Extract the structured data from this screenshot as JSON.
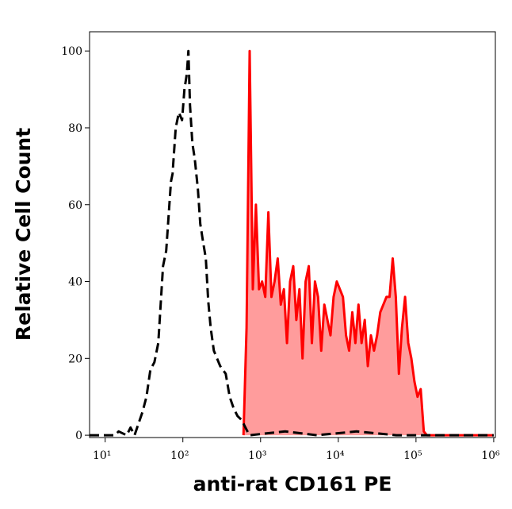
{
  "chart_data": {
    "type": "histogram-overlay",
    "xlabel": "anti-rat CD161 PE",
    "ylabel": "Relative Cell Count",
    "xscale": "log",
    "xlim": [
      6.3,
      1050000
    ],
    "ylim": [
      -0.6,
      105
    ],
    "xticks": [
      {
        "value": 10,
        "label": "10¹"
      },
      {
        "value": 100,
        "label": "10²"
      },
      {
        "value": 1000,
        "label": "10³"
      },
      {
        "value": 10000,
        "label": "10⁴"
      },
      {
        "value": 100000,
        "label": "10⁵"
      },
      {
        "value": 1000000,
        "label": "10⁶"
      }
    ],
    "yticks": [
      0,
      20,
      40,
      60,
      80,
      100
    ],
    "series": [
      {
        "color": "#000000",
        "style": "dashed",
        "filled": false,
        "x": [
          6.3,
          13.3,
          14.9,
          18.9,
          21.2,
          23.9,
          26.8,
          30.2,
          34.0,
          38.2,
          43.0,
          48.3,
          51.8,
          55.6,
          61.1,
          67.1,
          70.3,
          73.7,
          80.9,
          88.9,
          97.7,
          104.8,
          112.4,
          117.8,
          123.5,
          132.5,
          142.2,
          156.3,
          167.6,
          179.9,
          197.6,
          212.1,
          227.8,
          250.2,
          274.8,
          301.8,
          355.8,
          400,
          449.8,
          505.8,
          568.6,
          639.4,
          719,
          2070,
          5300,
          17200,
          55600,
          1000000
        ],
        "values": [
          0,
          0,
          1,
          0,
          2,
          0,
          3,
          6,
          10,
          17,
          19,
          24,
          34,
          44,
          48,
          60,
          66,
          68,
          80,
          84,
          82,
          90,
          94,
          100,
          86,
          76,
          72,
          64,
          55,
          51,
          46,
          35,
          28,
          22,
          20,
          18,
          16,
          10,
          7,
          5,
          4,
          2,
          0,
          1,
          0,
          1,
          0,
          0
        ]
      },
      {
        "color": "#ff0000",
        "fill": "#ff9c9c",
        "style": "solid",
        "filled": true,
        "x": [
          603,
          661,
          724,
          794,
          871,
          955,
          1047,
          1148,
          1259,
          1380,
          1514,
          1660,
          1820,
          1995,
          2188,
          2399,
          2630,
          2884,
          3162,
          3467,
          3802,
          4169,
          4571,
          5012,
          5495,
          6026,
          6607,
          7244,
          7943,
          8710,
          9550,
          10470,
          11480,
          12590,
          13800,
          15140,
          16600,
          18200,
          19950,
          21880,
          23990,
          26300,
          28840,
          31620,
          34670,
          38020,
          41690,
          45710,
          50120,
          54950,
          60260,
          66070,
          72440,
          79430,
          87100,
          95500,
          104700,
          114800,
          125900,
          138000,
          1000000
        ],
        "values": [
          0,
          28,
          100,
          38,
          60,
          38,
          40,
          36,
          58,
          36,
          40,
          46,
          34,
          38,
          24,
          40,
          44,
          30,
          38,
          20,
          40,
          44,
          24,
          40,
          36,
          22,
          34,
          30,
          26,
          36,
          40,
          38,
          36,
          26,
          22,
          32,
          24,
          34,
          24,
          30,
          18,
          26,
          22,
          26,
          32,
          34,
          36,
          36,
          46,
          36,
          16,
          28,
          36,
          24,
          20,
          14,
          10,
          12,
          1,
          0,
          0
        ]
      }
    ]
  }
}
